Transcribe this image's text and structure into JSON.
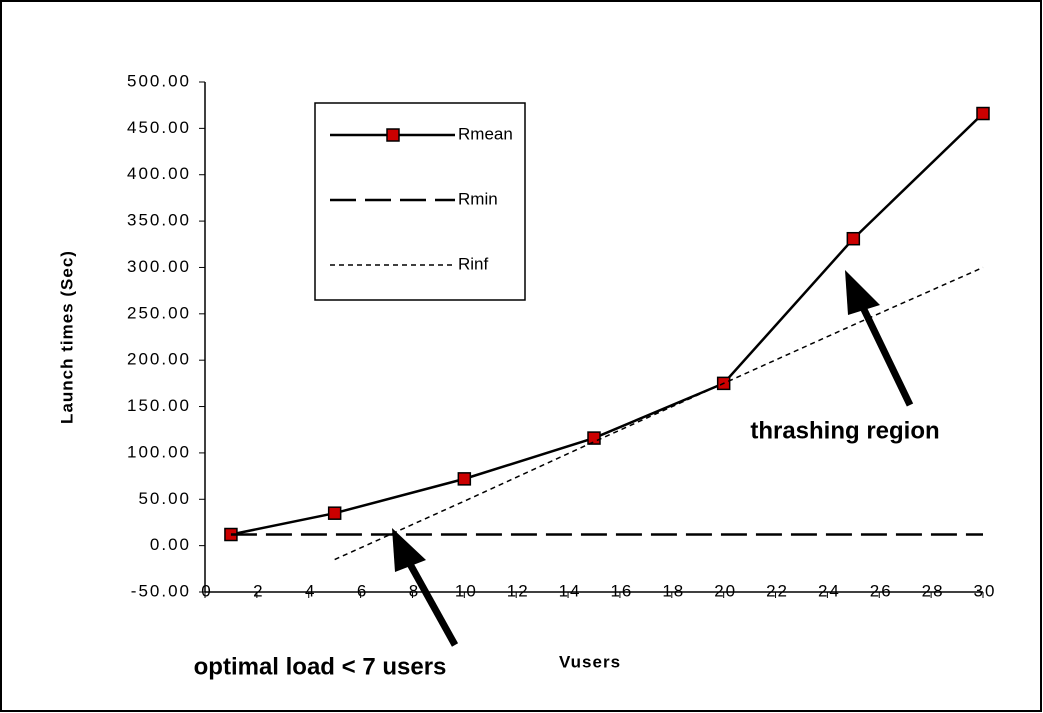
{
  "chart_data": {
    "type": "line",
    "ylabel": "Launch  times  (Sec)",
    "xlabel": "Vusers",
    "xlim": [
      0,
      30
    ],
    "xticks": [
      0,
      2,
      4,
      6,
      8,
      10,
      12,
      14,
      16,
      18,
      20,
      22,
      24,
      26,
      28,
      30
    ],
    "ylim": [
      -50,
      500
    ],
    "yticks": [
      {
        "value": -50,
        "label": "-50.00"
      },
      {
        "value": 0,
        "label": "0.00"
      },
      {
        "value": 50,
        "label": "50.00"
      },
      {
        "value": 100,
        "label": "100.00"
      },
      {
        "value": 150,
        "label": "150.00"
      },
      {
        "value": 200,
        "label": "200.00"
      },
      {
        "value": 250,
        "label": "250.00"
      },
      {
        "value": 300,
        "label": "300.00"
      },
      {
        "value": 350,
        "label": "350.00"
      },
      {
        "value": 400,
        "label": "400.00"
      },
      {
        "value": 450,
        "label": "450.00"
      },
      {
        "value": 500,
        "label": "500.00"
      }
    ],
    "grid": false,
    "legend": "upper left",
    "series": [
      {
        "name": "Rmean",
        "color": "#000000",
        "marker_color": "#cc0000",
        "dash": "solid",
        "x": [
          1,
          5,
          10,
          15,
          20,
          25,
          30
        ],
        "values": [
          12,
          35,
          72,
          116,
          175,
          331,
          466
        ]
      },
      {
        "name": "Rmin",
        "color": "#000000",
        "dash": "dashed",
        "x": [
          1,
          30
        ],
        "values": [
          12,
          12
        ]
      },
      {
        "name": "Rinf",
        "color": "#000000",
        "dash": "dotted",
        "x": [
          5,
          10,
          15,
          20,
          25,
          30
        ],
        "values": [
          -15,
          48,
          112,
          175,
          238,
          300
        ]
      }
    ],
    "annotations": [
      "thrashing region",
      "optimal load < 7 users"
    ]
  }
}
